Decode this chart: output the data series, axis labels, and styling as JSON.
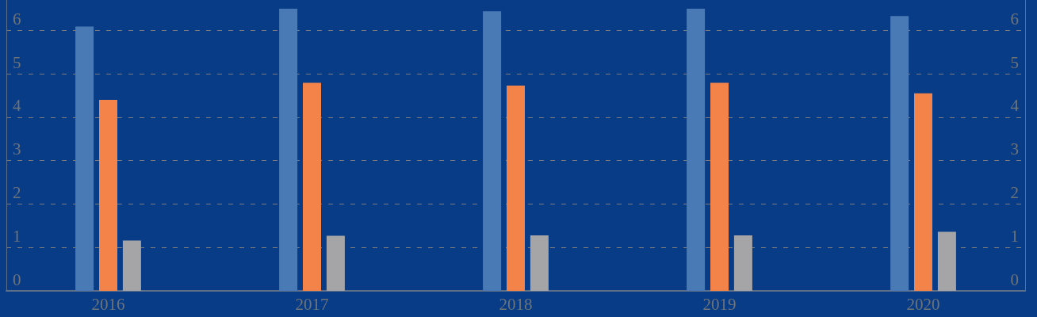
{
  "chart_data": {
    "type": "bar",
    "categories": [
      "2016",
      "2017",
      "2018",
      "2019",
      "2020"
    ],
    "series": [
      {
        "color": "#4a7ab5",
        "values": [
          6.09,
          6.5,
          6.44,
          6.5,
          6.33
        ]
      },
      {
        "color": "#f4834a",
        "values": [
          4.4,
          4.79,
          4.73,
          4.79,
          4.55
        ]
      },
      {
        "color": "#a5a5a8",
        "values": [
          1.16,
          1.27,
          1.28,
          1.28,
          1.36
        ]
      }
    ],
    "ylim": [
      0,
      6.7
    ],
    "yticks": [
      0,
      1,
      2,
      3,
      4,
      5,
      6
    ],
    "y2lim": [
      0,
      6.7
    ],
    "y2ticks": [
      0,
      1,
      2,
      3,
      4,
      5,
      6
    ],
    "grid": "y"
  }
}
